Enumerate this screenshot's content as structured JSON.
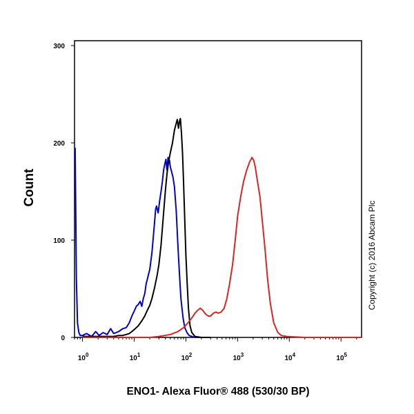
{
  "chart_data": {
    "type": "line",
    "title": "",
    "xlabel": "ENO1- Alexa Fluor® 488 (530/30 BP)",
    "ylabel": "Count",
    "x_scale": "log",
    "xlim": [
      0.7,
      250000
    ],
    "ylim": [
      0,
      305
    ],
    "x_ticks": [
      {
        "value": 1,
        "base": "10",
        "exp": "0"
      },
      {
        "value": 10,
        "base": "10",
        "exp": "1"
      },
      {
        "value": 100,
        "base": "10",
        "exp": "2"
      },
      {
        "value": 1000,
        "base": "10",
        "exp": "3"
      },
      {
        "value": 10000,
        "base": "10",
        "exp": "4"
      },
      {
        "value": 100000,
        "base": "10",
        "exp": "5"
      }
    ],
    "y_ticks": [
      {
        "value": 0,
        "label": "0"
      },
      {
        "value": 100,
        "label": "100"
      },
      {
        "value": 200,
        "label": "200"
      },
      {
        "value": 300,
        "label": "300"
      }
    ],
    "grid": false,
    "legend": "none",
    "annotation": "Copyright (c) 2016 Abcam Plc",
    "series": [
      {
        "color": "#0000cc",
        "points": [
          [
            0.72,
            195
          ],
          [
            0.76,
            60
          ],
          [
            0.8,
            15
          ],
          [
            0.85,
            5
          ],
          [
            0.9,
            2
          ],
          [
            1,
            2
          ],
          [
            1.2,
            4
          ],
          [
            1.5,
            1
          ],
          [
            1.8,
            6
          ],
          [
            2.1,
            2
          ],
          [
            2.5,
            5
          ],
          [
            3,
            3
          ],
          [
            3.5,
            9
          ],
          [
            4,
            4
          ],
          [
            5,
            6
          ],
          [
            6,
            9
          ],
          [
            7,
            10
          ],
          [
            8,
            15
          ],
          [
            9,
            22
          ],
          [
            10,
            27
          ],
          [
            11,
            32
          ],
          [
            12,
            34
          ],
          [
            13,
            37
          ],
          [
            14,
            32
          ],
          [
            15,
            40
          ],
          [
            16,
            45
          ],
          [
            17,
            55
          ],
          [
            18,
            60
          ],
          [
            20,
            70
          ],
          [
            22,
            87
          ],
          [
            24,
            110
          ],
          [
            26,
            132
          ],
          [
            27,
            135
          ],
          [
            29,
            128
          ],
          [
            31,
            140
          ],
          [
            33,
            150
          ],
          [
            35,
            160
          ],
          [
            37,
            172
          ],
          [
            39,
            178
          ],
          [
            41,
            183
          ],
          [
            43,
            172
          ],
          [
            45,
            185
          ],
          [
            48,
            182
          ],
          [
            50,
            175
          ],
          [
            53,
            170
          ],
          [
            56,
            165
          ],
          [
            60,
            155
          ],
          [
            65,
            130
          ],
          [
            70,
            95
          ],
          [
            75,
            65
          ],
          [
            80,
            40
          ],
          [
            88,
            20
          ],
          [
            95,
            10
          ],
          [
            105,
            5
          ],
          [
            115,
            2
          ],
          [
            130,
            1
          ],
          [
            150,
            0
          ],
          [
            200,
            0
          ],
          [
            300,
            0
          ]
        ]
      },
      {
        "color": "#000000",
        "points": [
          [
            1,
            1
          ],
          [
            2,
            1
          ],
          [
            3,
            1
          ],
          [
            4,
            1
          ],
          [
            5,
            2
          ],
          [
            6,
            2
          ],
          [
            7,
            3
          ],
          [
            8,
            4
          ],
          [
            9,
            6
          ],
          [
            10,
            8
          ],
          [
            12,
            12
          ],
          [
            14,
            17
          ],
          [
            16,
            22
          ],
          [
            18,
            28
          ],
          [
            20,
            33
          ],
          [
            22,
            40
          ],
          [
            25,
            52
          ],
          [
            28,
            65
          ],
          [
            30,
            75
          ],
          [
            33,
            95
          ],
          [
            36,
            120
          ],
          [
            40,
            150
          ],
          [
            43,
            168
          ],
          [
            46,
            180
          ],
          [
            50,
            190
          ],
          [
            55,
            200
          ],
          [
            60,
            213
          ],
          [
            65,
            220
          ],
          [
            68,
            224
          ],
          [
            72,
            215
          ],
          [
            75,
            222
          ],
          [
            78,
            225
          ],
          [
            82,
            210
          ],
          [
            86,
            190
          ],
          [
            90,
            160
          ],
          [
            95,
            120
          ],
          [
            100,
            85
          ],
          [
            106,
            55
          ],
          [
            112,
            30
          ],
          [
            120,
            12
          ],
          [
            130,
            5
          ],
          [
            150,
            1
          ],
          [
            200,
            0
          ],
          [
            300,
            0
          ]
        ]
      },
      {
        "color": "#dd2222",
        "points": [
          [
            1,
            0
          ],
          [
            10,
            0
          ],
          [
            20,
            0
          ],
          [
            30,
            1
          ],
          [
            50,
            3
          ],
          [
            70,
            6
          ],
          [
            90,
            10
          ],
          [
            110,
            15
          ],
          [
            130,
            20
          ],
          [
            150,
            25
          ],
          [
            170,
            28
          ],
          [
            190,
            30
          ],
          [
            210,
            28
          ],
          [
            240,
            24
          ],
          [
            270,
            22
          ],
          [
            300,
            22
          ],
          [
            340,
            25
          ],
          [
            380,
            26
          ],
          [
            420,
            25
          ],
          [
            480,
            26
          ],
          [
            550,
            30
          ],
          [
            620,
            40
          ],
          [
            700,
            55
          ],
          [
            800,
            75
          ],
          [
            900,
            100
          ],
          [
            1000,
            125
          ],
          [
            1150,
            145
          ],
          [
            1300,
            160
          ],
          [
            1500,
            172
          ],
          [
            1700,
            180
          ],
          [
            1900,
            185
          ],
          [
            2050,
            182
          ],
          [
            2200,
            175
          ],
          [
            2400,
            162
          ],
          [
            2700,
            145
          ],
          [
            3000,
            120
          ],
          [
            3400,
            90
          ],
          [
            3800,
            60
          ],
          [
            4300,
            35
          ],
          [
            5000,
            15
          ],
          [
            6000,
            5
          ],
          [
            7000,
            2
          ],
          [
            9000,
            1
          ],
          [
            20000,
            0
          ],
          [
            250000,
            0
          ]
        ]
      }
    ]
  }
}
